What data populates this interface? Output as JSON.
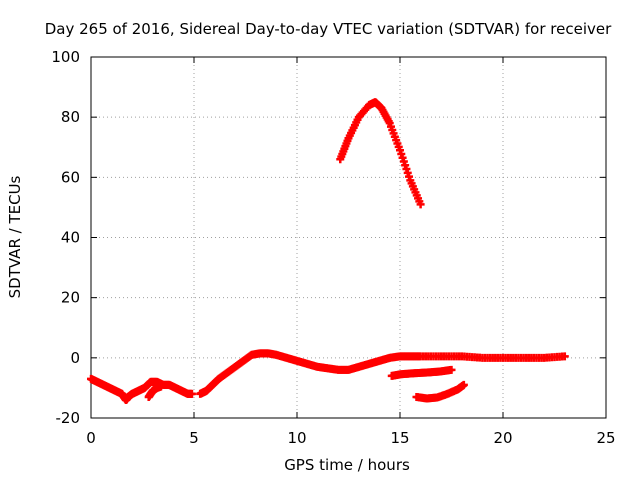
{
  "chart_data": {
    "type": "scatter",
    "title": "Day 265 of 2016, Sidereal Day-to-day VTEC variation (SDTVAR) for receiver",
    "xlabel": "GPS time / hours",
    "ylabel": "SDTVAR / TECUs",
    "xlim": [
      0,
      25
    ],
    "ylim": [
      -20,
      100
    ],
    "xticks": [
      0,
      5,
      10,
      15,
      20,
      25
    ],
    "yticks": [
      -20,
      0,
      20,
      40,
      60,
      80,
      100
    ],
    "grid": true,
    "legend": "none",
    "marker": "plus",
    "color": "#ff0000",
    "series": [
      {
        "points": [
          [
            0,
            -7
          ],
          [
            0.3,
            -8
          ],
          [
            0.6,
            -9
          ],
          [
            0.9,
            -10
          ],
          [
            1.2,
            -11
          ],
          [
            1.5,
            -12
          ],
          [
            1.7,
            -14
          ],
          [
            1.8,
            -13
          ],
          [
            2.0,
            -12
          ],
          [
            2.3,
            -11
          ],
          [
            2.6,
            -10
          ],
          [
            2.9,
            -8
          ],
          [
            3.2,
            -8
          ],
          [
            3.5,
            -9
          ],
          [
            3.8,
            -9
          ],
          [
            4.1,
            -10
          ],
          [
            4.4,
            -11
          ],
          [
            4.7,
            -12
          ],
          [
            4.9,
            -12
          ]
        ]
      },
      {
        "points": [
          [
            2.8,
            -13
          ],
          [
            3.0,
            -11
          ],
          [
            3.2,
            -10
          ],
          [
            3.4,
            -9.5
          ]
        ]
      },
      {
        "points": [
          [
            5.3,
            -12
          ],
          [
            5.6,
            -11
          ],
          [
            5.9,
            -9
          ],
          [
            6.2,
            -7
          ],
          [
            6.6,
            -5
          ],
          [
            7.0,
            -3
          ],
          [
            7.4,
            -1
          ],
          [
            7.8,
            1
          ],
          [
            8.2,
            1.5
          ],
          [
            8.6,
            1.5
          ],
          [
            9.0,
            1
          ],
          [
            9.5,
            0
          ],
          [
            10,
            -1
          ],
          [
            10.5,
            -2
          ],
          [
            11,
            -3
          ],
          [
            11.5,
            -3.5
          ],
          [
            12,
            -4
          ],
          [
            12.5,
            -4
          ],
          [
            13,
            -3
          ],
          [
            13.5,
            -2
          ],
          [
            14,
            -1
          ],
          [
            14.5,
            0
          ],
          [
            15,
            0.5
          ],
          [
            15.5,
            0.5
          ],
          [
            16,
            0.5
          ],
          [
            17,
            0.5
          ],
          [
            18,
            0.5
          ],
          [
            19,
            0
          ],
          [
            20,
            0
          ],
          [
            21,
            0
          ],
          [
            22,
            0
          ],
          [
            23,
            0.5
          ]
        ]
      },
      {
        "points": [
          [
            12.1,
            66
          ],
          [
            12.5,
            73
          ],
          [
            13.0,
            80
          ],
          [
            13.5,
            84
          ],
          [
            13.8,
            85
          ],
          [
            14.1,
            83
          ],
          [
            14.5,
            78
          ],
          [
            15.0,
            69
          ],
          [
            15.5,
            59
          ],
          [
            16.0,
            51
          ]
        ]
      },
      {
        "points": [
          [
            14.6,
            -6
          ],
          [
            15.0,
            -5.5
          ],
          [
            15.5,
            -5.2
          ],
          [
            16.0,
            -5
          ],
          [
            16.5,
            -4.8
          ],
          [
            17.0,
            -4.5
          ],
          [
            17.5,
            -4
          ]
        ]
      },
      {
        "points": [
          [
            15.8,
            -13
          ],
          [
            16.3,
            -13.5
          ],
          [
            16.8,
            -13.2
          ],
          [
            17.3,
            -12
          ],
          [
            17.8,
            -10.5
          ],
          [
            18.1,
            -9
          ]
        ]
      }
    ]
  }
}
